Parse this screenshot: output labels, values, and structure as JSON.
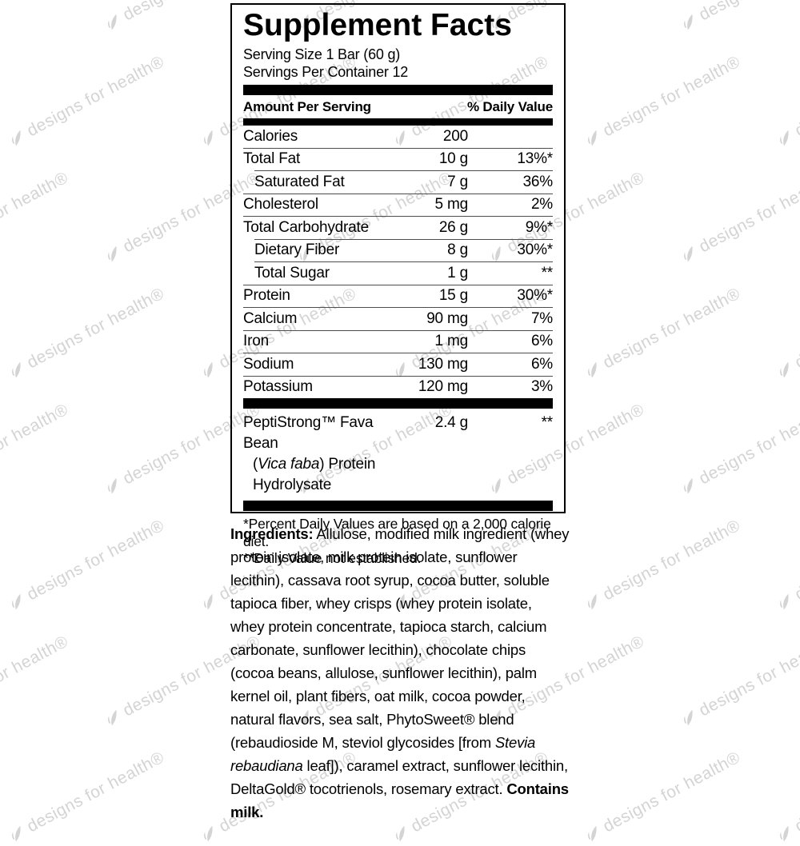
{
  "colors": {
    "text": "#000000",
    "bars": "#000000",
    "watermark": "#d4d4d4"
  },
  "watermark": {
    "text": "designs for health®"
  },
  "label": {
    "title": "Supplement Facts",
    "serving_size": "Serving Size 1 Bar (60 g)",
    "servings_per_container": "Servings Per Container 12",
    "header": {
      "left": "Amount Per Serving",
      "right": "% Daily Value"
    },
    "nutrients": [
      {
        "name": "Calories",
        "amount": "200",
        "dv": "",
        "indent": false
      },
      {
        "name": "Total Fat",
        "amount": "10 g",
        "dv": "13%*",
        "indent": false
      },
      {
        "name": "Saturated Fat",
        "amount": "7 g",
        "dv": "36%",
        "indent": true
      },
      {
        "name": "Cholesterol",
        "amount": "5 mg",
        "dv": "2%",
        "indent": false
      },
      {
        "name": "Total Carbohydrate",
        "amount": "26 g",
        "dv": "9%*",
        "indent": false
      },
      {
        "name": "Dietary Fiber",
        "amount": "8 g",
        "dv": "30%*",
        "indent": true
      },
      {
        "name": "Total Sugar",
        "amount": "1 g",
        "dv": "**",
        "indent": true
      },
      {
        "name": "Protein",
        "amount": "15 g",
        "dv": "30%*",
        "indent": false
      },
      {
        "name": "Calcium",
        "amount": "90 mg",
        "dv": "7%",
        "indent": false
      },
      {
        "name": "Iron",
        "amount": "1 mg",
        "dv": "6%",
        "indent": false
      },
      {
        "name": "Sodium",
        "amount": "130 mg",
        "dv": "6%",
        "indent": false
      },
      {
        "name": "Potassium",
        "amount": "120 mg",
        "dv": "3%",
        "indent": false
      }
    ],
    "blend": {
      "line1": "PeptiStrong™ Fava Bean",
      "line2_pre": "(",
      "line2_italic": "Vica faba",
      "line2_post": ") Protein Hydrolysate",
      "amount": "2.4 g",
      "dv": "**"
    },
    "footnotes": [
      "*Percent Daily Values are based on a 2,000 calorie diet.",
      "**Daily Value not established."
    ]
  },
  "ingredients": {
    "label": "Ingredients:",
    "part1": " Allulose, modified milk ingredient (whey protein isolate, milk protein isolate, sunflower lecithin), cassava root syrup, cocoa butter, soluble tapioca fiber, whey crisps (whey protein isolate, whey protein concentrate, tapioca starch, calcium carbonate, sunflower lecithin), chocolate chips (cocoa beans, allulose, sunflower lecithin), palm kernel oil, plant fibers, oat milk, cocoa powder, natural flavors, sea salt, PhytoSweet® blend (rebaudioside M, steviol glycosides [from ",
    "stevia_italic": "Stevia rebaudiana",
    "part2": " leaf]), caramel extract, sunflower lecithin, DeltaGold® tocotrienols, rosemary extract. ",
    "contains_bold": "Contains milk."
  }
}
